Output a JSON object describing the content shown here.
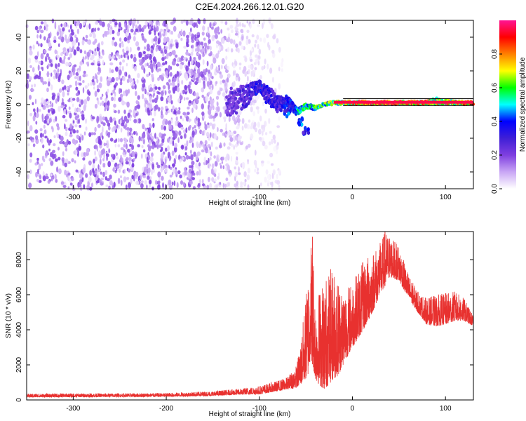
{
  "figure_title": "C2E4.2024.266.12.01.G20",
  "chart_data": [
    {
      "type": "heatmap",
      "title": "C2E4.2024.266.12.01.G20",
      "xlabel": "Height of straight line (km)",
      "ylabel": "Frequency (Hz)",
      "xlim": [
        -350,
        130
      ],
      "ylim": [
        -50,
        50
      ],
      "xticks": [
        -300,
        -200,
        -100,
        0,
        100
      ],
      "yticks": [
        -40,
        -20,
        0,
        20,
        40
      ],
      "colorbar": {
        "label": "Normalized spectral amplitude",
        "range": [
          0,
          1
        ],
        "ticks": [
          0.0,
          0.2,
          0.4,
          0.6,
          0.8
        ],
        "tick_labels": [
          "0.0",
          "0.2",
          "0.4",
          "0.6",
          "0.8"
        ],
        "colors": [
          "#ffffff",
          "#c9a6f5",
          "#7f3fe0",
          "#3f1fd6",
          "#0000ff",
          "#00ffff",
          "#00ff00",
          "#ffff00",
          "#ff8000",
          "#ff0000",
          "#ff1493"
        ]
      },
      "noise_region": {
        "x": [
          -350,
          -75
        ],
        "y": [
          -50,
          50
        ],
        "level": 0.2
      },
      "signal_track": [
        {
          "x": -135,
          "y": 1,
          "amp": 0.32,
          "spread": 8
        },
        {
          "x": -120,
          "y": 3,
          "amp": 0.35,
          "spread": 8
        },
        {
          "x": -100,
          "y": 11,
          "amp": 0.5,
          "spread": 3
        },
        {
          "x": -90,
          "y": 5,
          "amp": 0.45,
          "spread": 6
        },
        {
          "x": -80,
          "y": 0,
          "amp": 0.42,
          "spread": 5
        },
        {
          "x": -70,
          "y": 2,
          "amp": 0.5,
          "spread": 3
        },
        {
          "x": -60,
          "y": -4,
          "amp": 0.55,
          "spread": 2
        },
        {
          "x": -50,
          "y": -1,
          "amp": 0.6,
          "spread": 2
        },
        {
          "x": -40,
          "y": -2,
          "amp": 0.65,
          "spread": 1
        },
        {
          "x": -30,
          "y": 0,
          "amp": 0.7,
          "spread": 1
        },
        {
          "x": -20,
          "y": 1,
          "amp": 0.75,
          "spread": 1
        },
        {
          "x": -10,
          "y": 1,
          "amp": 0.8,
          "spread": 1
        },
        {
          "x": 0,
          "y": 1,
          "amp": 0.9,
          "spread": 1
        },
        {
          "x": 20,
          "y": 1,
          "amp": 0.95,
          "spread": 1
        },
        {
          "x": 40,
          "y": 1,
          "amp": 0.97,
          "spread": 1
        },
        {
          "x": 60,
          "y": 1,
          "amp": 0.95,
          "spread": 1
        },
        {
          "x": 80,
          "y": 1,
          "amp": 0.9,
          "spread": 1
        },
        {
          "x": 90,
          "y": 2,
          "amp": 0.8,
          "spread": 2
        },
        {
          "x": 110,
          "y": 1,
          "amp": 0.85,
          "spread": 1
        },
        {
          "x": 130,
          "y": 1,
          "amp": 0.88,
          "spread": 1
        }
      ],
      "branch": [
        {
          "x": -70,
          "y": -5,
          "amp": 0.45
        },
        {
          "x": -55,
          "y": -10,
          "amp": 0.5
        },
        {
          "x": -50,
          "y": -16,
          "amp": 0.4
        }
      ]
    },
    {
      "type": "line",
      "xlabel": "Height of straight line (km)",
      "ylabel": "SNR (10 * v/v)",
      "xlim": [
        -350,
        130
      ],
      "ylim": [
        0,
        9600
      ],
      "xticks": [
        -300,
        -200,
        -100,
        0,
        100
      ],
      "yticks": [
        0,
        2000,
        4000,
        6000,
        8000
      ],
      "color": "#e8312f",
      "envelope": {
        "x": [
          -350,
          -300,
          -250,
          -200,
          -150,
          -120,
          -100,
          -80,
          -70,
          -60,
          -55,
          -50,
          -47,
          -45,
          -42,
          -40,
          -35,
          -30,
          -25,
          -20,
          -15,
          -10,
          -5,
          0,
          10,
          20,
          30,
          35,
          40,
          50,
          60,
          70,
          80,
          90,
          100,
          110,
          120,
          130
        ],
        "low": [
          150,
          160,
          170,
          180,
          230,
          300,
          320,
          500,
          600,
          700,
          900,
          1200,
          1500,
          2500,
          1800,
          1200,
          800,
          600,
          900,
          1200,
          1400,
          2000,
          2500,
          3000,
          3800,
          4800,
          6000,
          6500,
          7000,
          6800,
          5800,
          5000,
          4300,
          4200,
          4300,
          4500,
          4500,
          4200
        ],
        "high": [
          350,
          380,
          380,
          400,
          500,
          650,
          800,
          1100,
          1300,
          2000,
          3500,
          6000,
          7600,
          9300,
          8800,
          5500,
          6500,
          7000,
          7500,
          7500,
          7000,
          6500,
          6500,
          6800,
          7800,
          8400,
          9000,
          9600,
          9400,
          8800,
          7200,
          6200,
          5800,
          6000,
          6100,
          6200,
          5800,
          4800
        ]
      },
      "peaks": [
        {
          "x": -43,
          "y": 9300
        },
        {
          "x": 35,
          "y": 9600
        }
      ]
    }
  ]
}
